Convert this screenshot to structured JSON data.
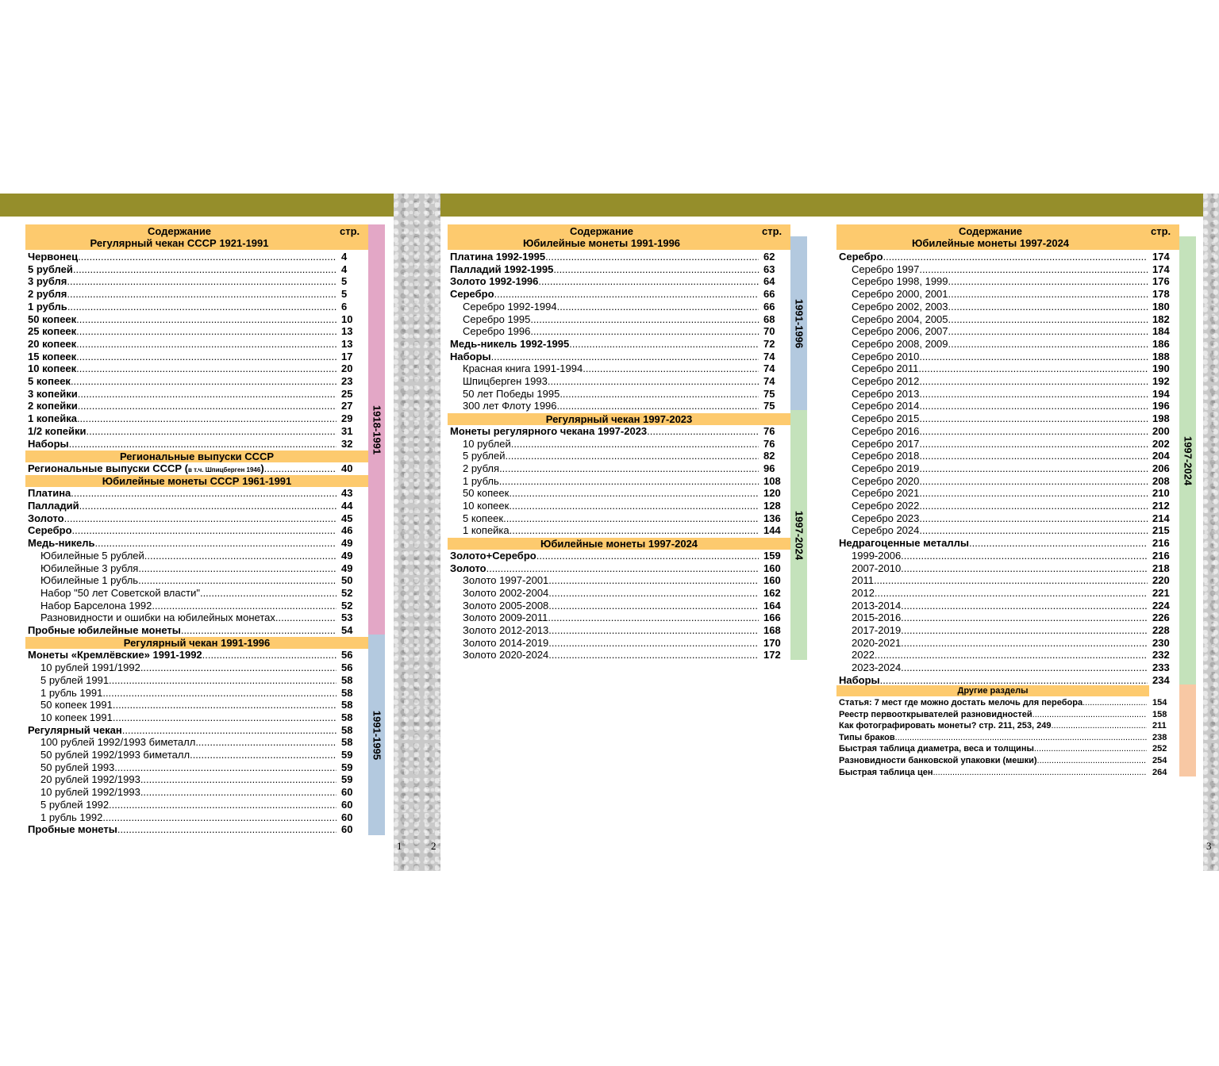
{
  "page_numbers": [
    "1",
    "2",
    "3"
  ],
  "col1": {
    "title": "Содержание",
    "subtitle": "Регулярный чекан СССР 1921-1991",
    "page_label": "стр.",
    "rows": [
      {
        "t": "Червонец",
        "p": "4",
        "b": true,
        "i": false
      },
      {
        "t": "5 рублей",
        "p": "4",
        "b": true,
        "i": false
      },
      {
        "t": "3 рубля",
        "p": "5",
        "b": true,
        "i": false
      },
      {
        "t": "2 рубля",
        "p": "5",
        "b": true,
        "i": false
      },
      {
        "t": "1 рубль",
        "p": "6",
        "b": true,
        "i": false
      },
      {
        "t": "50 копеек",
        "p": "10",
        "b": true,
        "i": false
      },
      {
        "t": "25 копеек",
        "p": "13",
        "b": true,
        "i": false
      },
      {
        "t": "20 копеек",
        "p": "13",
        "b": true,
        "i": false
      },
      {
        "t": "15 копеек",
        "p": "17",
        "b": true,
        "i": false
      },
      {
        "t": "10 копеек",
        "p": "20",
        "b": true,
        "i": false
      },
      {
        "t": "5 копеек",
        "p": "23",
        "b": true,
        "i": false
      },
      {
        "t": "3 копейки",
        "p": "25",
        "b": true,
        "i": false
      },
      {
        "t": "2 копейки",
        "p": "27",
        "b": true,
        "i": false
      },
      {
        "t": "1 копейка",
        "p": "29",
        "b": true,
        "i": false
      },
      {
        "t": "1/2 копейки",
        "p": "31",
        "b": true,
        "i": false
      },
      {
        "t": "Наборы",
        "p": "32",
        "b": true,
        "i": false
      },
      {
        "sec": "Региональные выпуски СССР"
      },
      {
        "t": "Региональные выпуски СССР (",
        "note": "в т.ч. Шпицберген 1946",
        "t2": ")",
        "p": "40",
        "b": true,
        "i": false
      },
      {
        "sec": "Юбилейные монеты СССР 1961-1991"
      },
      {
        "t": "Платина",
        "p": "43",
        "b": true,
        "i": false
      },
      {
        "t": "Палладий",
        "p": "44",
        "b": true,
        "i": false
      },
      {
        "t": "Золото",
        "p": "45",
        "b": true,
        "i": false
      },
      {
        "t": "Серебро",
        "p": "46",
        "b": true,
        "i": false
      },
      {
        "t": "Медь-никель",
        "p": "49",
        "b": true,
        "i": false
      },
      {
        "t": "Юбилейные 5 рублей",
        "p": "49",
        "b": false,
        "i": true
      },
      {
        "t": "Юбилейные 3 рубля",
        "p": "49",
        "b": false,
        "i": true
      },
      {
        "t": "Юбилейные 1 рубль",
        "p": "50",
        "b": false,
        "i": true
      },
      {
        "t": "Набор \"50 лет Советской власти\"",
        "p": "52",
        "b": false,
        "i": true
      },
      {
        "t": "Набор Барселона 1992",
        "p": "52",
        "b": false,
        "i": true
      },
      {
        "t": "Разновидности и ошибки на юбилейных монетах",
        "p": "53",
        "b": false,
        "i": true
      },
      {
        "t": "Пробные юбилейные монеты",
        "p": "54",
        "b": true,
        "i": false
      },
      {
        "sec": "Регулярный чекан 1991-1996"
      },
      {
        "t": "Монеты «Кремлёвские» 1991-1992",
        "p": "56",
        "b": true,
        "i": false
      },
      {
        "t": "10 рублей 1991/1992",
        "p": "56",
        "b": false,
        "i": true
      },
      {
        "t": "5 рублей 1991",
        "p": "58",
        "b": false,
        "i": true
      },
      {
        "t": "1 рубль 1991",
        "p": "58",
        "b": false,
        "i": true
      },
      {
        "t": "50 копеек 1991",
        "p": "58",
        "b": false,
        "i": true
      },
      {
        "t": "10 копеек 1991",
        "p": "58",
        "b": false,
        "i": true
      },
      {
        "t": "Регулярный чекан",
        "p": "58",
        "b": true,
        "i": false
      },
      {
        "t": "100 рублей 1992/1993 биметалл",
        "p": "58",
        "b": false,
        "i": true
      },
      {
        "t": "50 рублей 1992/1993 биметалл",
        "p": "59",
        "b": false,
        "i": true
      },
      {
        "t": "50 рублей 1993",
        "p": "59",
        "b": false,
        "i": true
      },
      {
        "t": "20 рублей 1992/1993",
        "p": "59",
        "b": false,
        "i": true
      },
      {
        "t": "10 рублей 1992/1993",
        "p": "60",
        "b": false,
        "i": true
      },
      {
        "t": "5 рублей 1992",
        "p": "60",
        "b": false,
        "i": true
      },
      {
        "t": "1 рубль 1992",
        "p": "60",
        "b": false,
        "i": true
      },
      {
        "t": "Пробные монеты",
        "p": "60",
        "b": true,
        "i": false
      }
    ],
    "bars": [
      {
        "label": "1918-1991",
        "color": "#e3a7c6"
      },
      {
        "label": "1991-1995",
        "color": "#b3c9df"
      }
    ]
  },
  "col2": {
    "title": "Содержание",
    "subtitle": "Юбилейные монеты 1991-1996",
    "page_label": "стр.",
    "rows": [
      {
        "t": "Платина 1992-1995",
        "p": "62",
        "b": true,
        "i": false
      },
      {
        "t": "Палладий 1992-1995",
        "p": "63",
        "b": true,
        "i": false
      },
      {
        "t": "Золото 1992-1996",
        "p": "64",
        "b": true,
        "i": false
      },
      {
        "t": "Серебро",
        "p": "66",
        "b": true,
        "i": false
      },
      {
        "t": "Серебро 1992-1994",
        "p": "66",
        "b": false,
        "i": true
      },
      {
        "t": "Серебро 1995",
        "p": "68",
        "b": false,
        "i": true
      },
      {
        "t": "Серебро 1996",
        "p": "70",
        "b": false,
        "i": true
      },
      {
        "t": "Медь-никель 1992-1995",
        "p": "72",
        "b": true,
        "i": false
      },
      {
        "t": "Наборы",
        "p": "74",
        "b": true,
        "i": false
      },
      {
        "t": "Красная книга 1991-1994",
        "p": "74",
        "b": false,
        "i": true
      },
      {
        "t": "Шпицберген 1993",
        "p": "74",
        "b": false,
        "i": true
      },
      {
        "t": "50 лет Победы 1995",
        "p": "75",
        "b": false,
        "i": true
      },
      {
        "t": "300 лет Флоту 1996",
        "p": "75",
        "b": false,
        "i": true
      },
      {
        "sec": "Регулярный чекан 1997-2023"
      },
      {
        "t": "Монеты регулярного чекана 1997-2023",
        "p": "76",
        "b": true,
        "i": false
      },
      {
        "t": "10 рублей",
        "p": "76",
        "b": false,
        "i": true
      },
      {
        "t": "5 рублей",
        "p": "82",
        "b": false,
        "i": true
      },
      {
        "t": "2 рубля",
        "p": "96",
        "b": false,
        "i": true
      },
      {
        "t": "1 рубль",
        "p": "108",
        "b": false,
        "i": true
      },
      {
        "t": "50 копеек",
        "p": "120",
        "b": false,
        "i": true
      },
      {
        "t": "10 копеек",
        "p": "128",
        "b": false,
        "i": true
      },
      {
        "t": "5 копеек",
        "p": "136",
        "b": false,
        "i": true
      },
      {
        "t": "1 копейка",
        "p": "144",
        "b": false,
        "i": true
      },
      {
        "sec": "Юбилейные монеты 1997-2024"
      },
      {
        "t": "Золото+Серебро",
        "p": "159",
        "b": true,
        "i": false
      },
      {
        "t": "Золото",
        "p": "160",
        "b": true,
        "i": false
      },
      {
        "t": "Золото 1997-2001",
        "p": "160",
        "b": false,
        "i": true
      },
      {
        "t": "Золото 2002-2004",
        "p": "162",
        "b": false,
        "i": true
      },
      {
        "t": "Золото 2005-2008",
        "p": "164",
        "b": false,
        "i": true
      },
      {
        "t": "Золото 2009-2011",
        "p": "166",
        "b": false,
        "i": true
      },
      {
        "t": "Золото 2012-2013",
        "p": "168",
        "b": false,
        "i": true
      },
      {
        "t": "Золото 2014-2019",
        "p": "170",
        "b": false,
        "i": true
      },
      {
        "t": "Золото 2020-2024",
        "p": "172",
        "b": false,
        "i": true
      }
    ],
    "bars": [
      {
        "label": "1991-1996",
        "color": "#b3c9df"
      },
      {
        "label": "1997-2024",
        "color": "#c4e2bb"
      }
    ]
  },
  "col3": {
    "title": "Содержание",
    "subtitle": "Юбилейные монеты 1997-2024",
    "page_label": "стр.",
    "rows": [
      {
        "t": "Серебро",
        "p": "174",
        "b": true,
        "i": false
      },
      {
        "t": "Серебро 1997",
        "p": "174",
        "b": false,
        "i": true
      },
      {
        "t": "Серебро 1998, 1999",
        "p": "176",
        "b": false,
        "i": true
      },
      {
        "t": "Серебро 2000, 2001",
        "p": "178",
        "b": false,
        "i": true
      },
      {
        "t": "Серебро 2002, 2003",
        "p": "180",
        "b": false,
        "i": true
      },
      {
        "t": "Серебро 2004, 2005",
        "p": "182",
        "b": false,
        "i": true
      },
      {
        "t": "Серебро 2006, 2007",
        "p": "184",
        "b": false,
        "i": true
      },
      {
        "t": "Серебро 2008, 2009",
        "p": "186",
        "b": false,
        "i": true
      },
      {
        "t": "Серебро 2010",
        "p": "188",
        "b": false,
        "i": true
      },
      {
        "t": "Серебро 2011",
        "p": "190",
        "b": false,
        "i": true
      },
      {
        "t": "Серебро 2012",
        "p": "192",
        "b": false,
        "i": true
      },
      {
        "t": "Серебро 2013",
        "p": "194",
        "b": false,
        "i": true
      },
      {
        "t": "Серебро 2014",
        "p": "196",
        "b": false,
        "i": true
      },
      {
        "t": "Серебро 2015",
        "p": "198",
        "b": false,
        "i": true
      },
      {
        "t": "Серебро 2016",
        "p": "200",
        "b": false,
        "i": true
      },
      {
        "t": "Серебро 2017",
        "p": "202",
        "b": false,
        "i": true
      },
      {
        "t": "Серебро 2018",
        "p": "204",
        "b": false,
        "i": true
      },
      {
        "t": "Серебро 2019",
        "p": "206",
        "b": false,
        "i": true
      },
      {
        "t": "Серебро 2020",
        "p": "208",
        "b": false,
        "i": true
      },
      {
        "t": "Серебро 2021",
        "p": "210",
        "b": false,
        "i": true
      },
      {
        "t": "Серебро 2022",
        "p": "212",
        "b": false,
        "i": true
      },
      {
        "t": "Серебро 2023",
        "p": "214",
        "b": false,
        "i": true
      },
      {
        "t": "Серебро 2024",
        "p": "215",
        "b": false,
        "i": true
      },
      {
        "t": "Недрагоценные металлы",
        "p": "216",
        "b": true,
        "i": false
      },
      {
        "t": "1999-2006",
        "p": "216",
        "b": false,
        "i": true
      },
      {
        "t": "2007-2010",
        "p": "218",
        "b": false,
        "i": true
      },
      {
        "t": "2011",
        "p": "220",
        "b": false,
        "i": true
      },
      {
        "t": "2012",
        "p": "221",
        "b": false,
        "i": true
      },
      {
        "t": "2013-2014",
        "p": "224",
        "b": false,
        "i": true
      },
      {
        "t": "2015-2016",
        "p": "226",
        "b": false,
        "i": true
      },
      {
        "t": "2017-2019",
        "p": "228",
        "b": false,
        "i": true
      },
      {
        "t": "2020-2021",
        "p": "230",
        "b": false,
        "i": true
      },
      {
        "t": "2022",
        "p": "232",
        "b": false,
        "i": true
      },
      {
        "t": "2023-2024",
        "p": "233",
        "b": false,
        "i": true
      },
      {
        "t": "Наборы",
        "p": "234",
        "b": true,
        "i": false
      }
    ],
    "other_title": "Другие разделы",
    "other_rows": [
      {
        "t": "Статья: 7 мест где можно достать мелочь для перебора",
        "p": "154"
      },
      {
        "t": "Реестр первооткрывателей разновидностей",
        "p": "158"
      },
      {
        "t": "Как фотографировать монеты? стр. 211, 253, 249",
        "p": "211"
      },
      {
        "t": "Типы браков",
        "p": "238"
      },
      {
        "t": "Быстрая таблица диаметра, веса и толщины",
        "p": "252"
      },
      {
        "t": "Разновидности банковской упаковки (мешки)",
        "p": "254"
      },
      {
        "t": "Быстрая таблица цен",
        "p": "264"
      }
    ],
    "bars": [
      {
        "label": "1997-2024",
        "color": "#c4e2bb"
      },
      {
        "label": "",
        "color": "#f8c8a4"
      }
    ]
  }
}
